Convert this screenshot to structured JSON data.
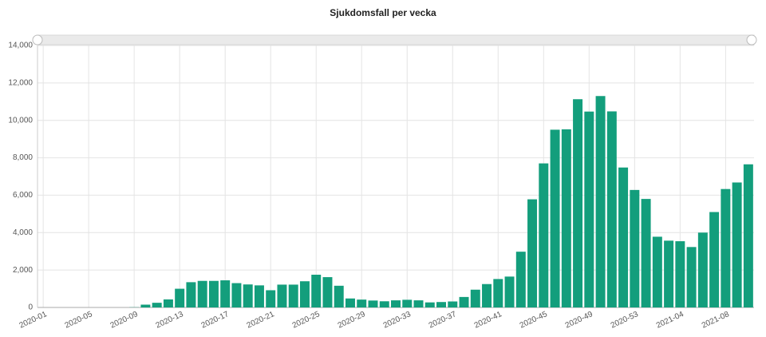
{
  "chart_data": {
    "type": "bar",
    "title": "Sjukdomsfall per vecka",
    "categories": [
      "2020-01",
      null,
      null,
      null,
      "2020-05",
      null,
      null,
      null,
      "2020-09",
      null,
      null,
      null,
      "2020-13",
      null,
      null,
      null,
      "2020-17",
      null,
      null,
      null,
      "2020-21",
      null,
      null,
      null,
      "2020-25",
      null,
      null,
      null,
      "2020-29",
      null,
      null,
      null,
      "2020-33",
      null,
      null,
      null,
      "2020-37",
      null,
      null,
      null,
      "2020-41",
      null,
      null,
      null,
      "2020-45",
      null,
      null,
      null,
      "2020-49",
      null,
      null,
      null,
      "2020-53",
      null,
      null,
      null,
      "2021-04",
      null,
      null,
      null,
      "2021-08",
      null,
      null
    ],
    "values": [
      0,
      0,
      0,
      0,
      0,
      0,
      0,
      0,
      10,
      150,
      250,
      430,
      1000,
      1350,
      1420,
      1420,
      1450,
      1300,
      1230,
      1180,
      920,
      1220,
      1220,
      1400,
      1750,
      1620,
      1160,
      480,
      420,
      370,
      330,
      380,
      410,
      380,
      270,
      290,
      320,
      560,
      950,
      1250,
      1520,
      1650,
      2980,
      5780,
      7700,
      9500,
      9520,
      11130,
      10470,
      11300,
      10480,
      7480,
      6280,
      5800,
      3780,
      3570,
      3540,
      3230,
      4000,
      5100,
      6330,
      6680,
      7650
    ],
    "color": "#139e7c",
    "ylim": [
      0,
      14000
    ],
    "yticks": [
      0,
      {
        "value": 2000,
        "label": "2,000"
      },
      {
        "value": 4000,
        "label": "4,000"
      },
      {
        "value": 6000,
        "label": "6,000"
      },
      {
        "value": 8000,
        "label": "8,000"
      },
      {
        "value": 10000,
        "label": "10,000"
      },
      {
        "value": 12000,
        "label": "12,000"
      },
      {
        "value": 14000,
        "label": "14,000"
      }
    ],
    "grid": true
  }
}
